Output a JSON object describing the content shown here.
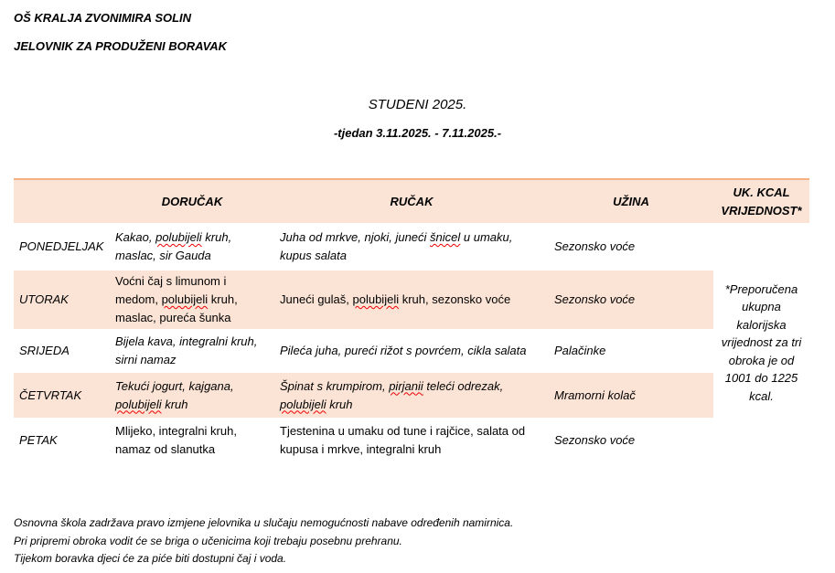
{
  "header": {
    "school": "OŠ KRALJA ZVONIMIRA SOLIN",
    "subtitle": "JELOVNIK ZA PRODUŽENI BORAVAK",
    "month": "STUDENI 2025.",
    "week": "-tjedan 3.11.2025. - 7.11.2025.-"
  },
  "table": {
    "columns": [
      "",
      "DORUČAK",
      "RUČAK",
      "UŽINA",
      "UK. KCAL VRIJEDNOST*"
    ],
    "kcal_note": "*Preporučena ukupna kalorijska vrijednost za tri obroka je od 1001 do 1225 kcal.",
    "rows": [
      {
        "day": "PONEDJELJAK",
        "shaded": false,
        "italic": [
          true,
          true,
          true
        ],
        "breakfast": [
          {
            "t": "Kakao, "
          },
          {
            "t": "polubijeli",
            "err": true
          },
          {
            "t": " kruh, maslac, sir Gauda"
          }
        ],
        "lunch": [
          {
            "t": "Juha od mrkve, njoki, juneći "
          },
          {
            "t": "šnicel",
            "err": true
          },
          {
            "t": " u umaku, kupus salata"
          }
        ],
        "snack": "Sezonsko voće"
      },
      {
        "day": "UTORAK",
        "shaded": true,
        "italic": [
          false,
          false,
          true
        ],
        "breakfast": [
          {
            "t": "Voćni čaj s limunom i medom, "
          },
          {
            "t": "polubijeli",
            "err": true
          },
          {
            "t": " kruh, maslac, pureća šunka"
          }
        ],
        "lunch": [
          {
            "t": "Juneći gulaš, "
          },
          {
            "t": "polubijeli",
            "err": true
          },
          {
            "t": " kruh, sezonsko voće"
          }
        ],
        "snack": "Sezonsko voće"
      },
      {
        "day": "SRIJEDA",
        "shaded": false,
        "italic": [
          true,
          true,
          true
        ],
        "breakfast": [
          {
            "t": "Bijela kava, integralni kruh, sirni namaz"
          }
        ],
        "lunch": [
          {
            "t": "Pileća juha, pureći rižot s povrćem, cikla salata"
          }
        ],
        "snack": "Palačinke"
      },
      {
        "day": "ČETVRTAK",
        "shaded": true,
        "italic": [
          true,
          true,
          true
        ],
        "breakfast": [
          {
            "t": "Tekući jogurt, kajgana, "
          },
          {
            "t": "polubijeli",
            "err": true
          },
          {
            "t": " kruh"
          }
        ],
        "lunch": [
          {
            "t": "Špinat s krumpirom, "
          },
          {
            "t": "pirjanii",
            "err": true
          },
          {
            "t": " teleći odrezak, "
          },
          {
            "t": "polubijeli",
            "err": true
          },
          {
            "t": " kruh"
          }
        ],
        "snack": "Mramorni kolač"
      },
      {
        "day": "PETAK",
        "shaded": false,
        "italic": [
          false,
          false,
          true
        ],
        "breakfast": [
          {
            "t": "Mlijeko, integralni kruh, namaz od slanutka"
          }
        ],
        "lunch": [
          {
            "t": "Tjestenina u umaku od tune i rajčice, salata od kupusa i mrkve, integralni kruh"
          }
        ],
        "snack": "Sezonsko voće"
      }
    ]
  },
  "notes": [
    "Osnovna škola zadržava pravo izmjene jelovnika u slučaju nemogućnosti nabave određenih namirnica.",
    "Pri pripremi obroka vodit će se briga o učenicima koji trebaju posebnu prehranu.",
    "Tijekom boravka djeci će za piće biti dostupni čaj i voda."
  ]
}
